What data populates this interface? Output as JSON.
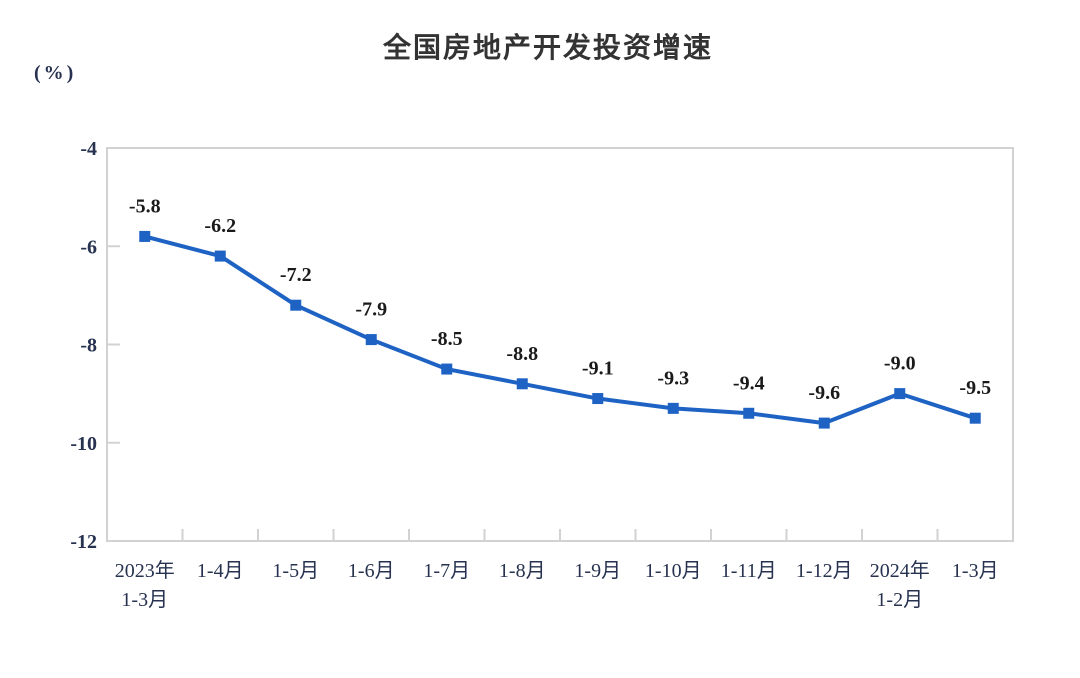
{
  "chart_data": {
    "type": "line",
    "title": "全国房地产开发投资增速",
    "unit_label": "(%)",
    "categories": [
      [
        "2023年",
        "1-3月"
      ],
      [
        "1-4月"
      ],
      [
        "1-5月"
      ],
      [
        "1-6月"
      ],
      [
        "1-7月"
      ],
      [
        "1-8月"
      ],
      [
        "1-9月"
      ],
      [
        "1-10月"
      ],
      [
        "1-11月"
      ],
      [
        "1-12月"
      ],
      [
        "2024年",
        "1-2月"
      ],
      [
        "1-3月"
      ]
    ],
    "values": [
      -5.8,
      -6.2,
      -7.2,
      -7.9,
      -8.5,
      -8.8,
      -9.1,
      -9.3,
      -9.4,
      -9.6,
      -9.0,
      -9.5
    ],
    "data_labels": [
      "-5.8",
      "-6.2",
      "-7.2",
      "-7.9",
      "-8.5",
      "-8.8",
      "-9.1",
      "-9.3",
      "-9.4",
      "-9.6",
      "-9.0",
      "-9.5"
    ],
    "ylim": [
      -12,
      -4
    ],
    "yticks": [
      -4,
      -6,
      -8,
      -10,
      -12
    ],
    "grid": "off",
    "legend": "none",
    "marker_shape": "square",
    "colors": {
      "line": "#1e63c4",
      "marker": "#1e63c4",
      "axis_border": "#d2d2d2",
      "axis_text": "#26324f",
      "data_label_text": "#1a1a1a",
      "title_text": "#333333"
    }
  }
}
